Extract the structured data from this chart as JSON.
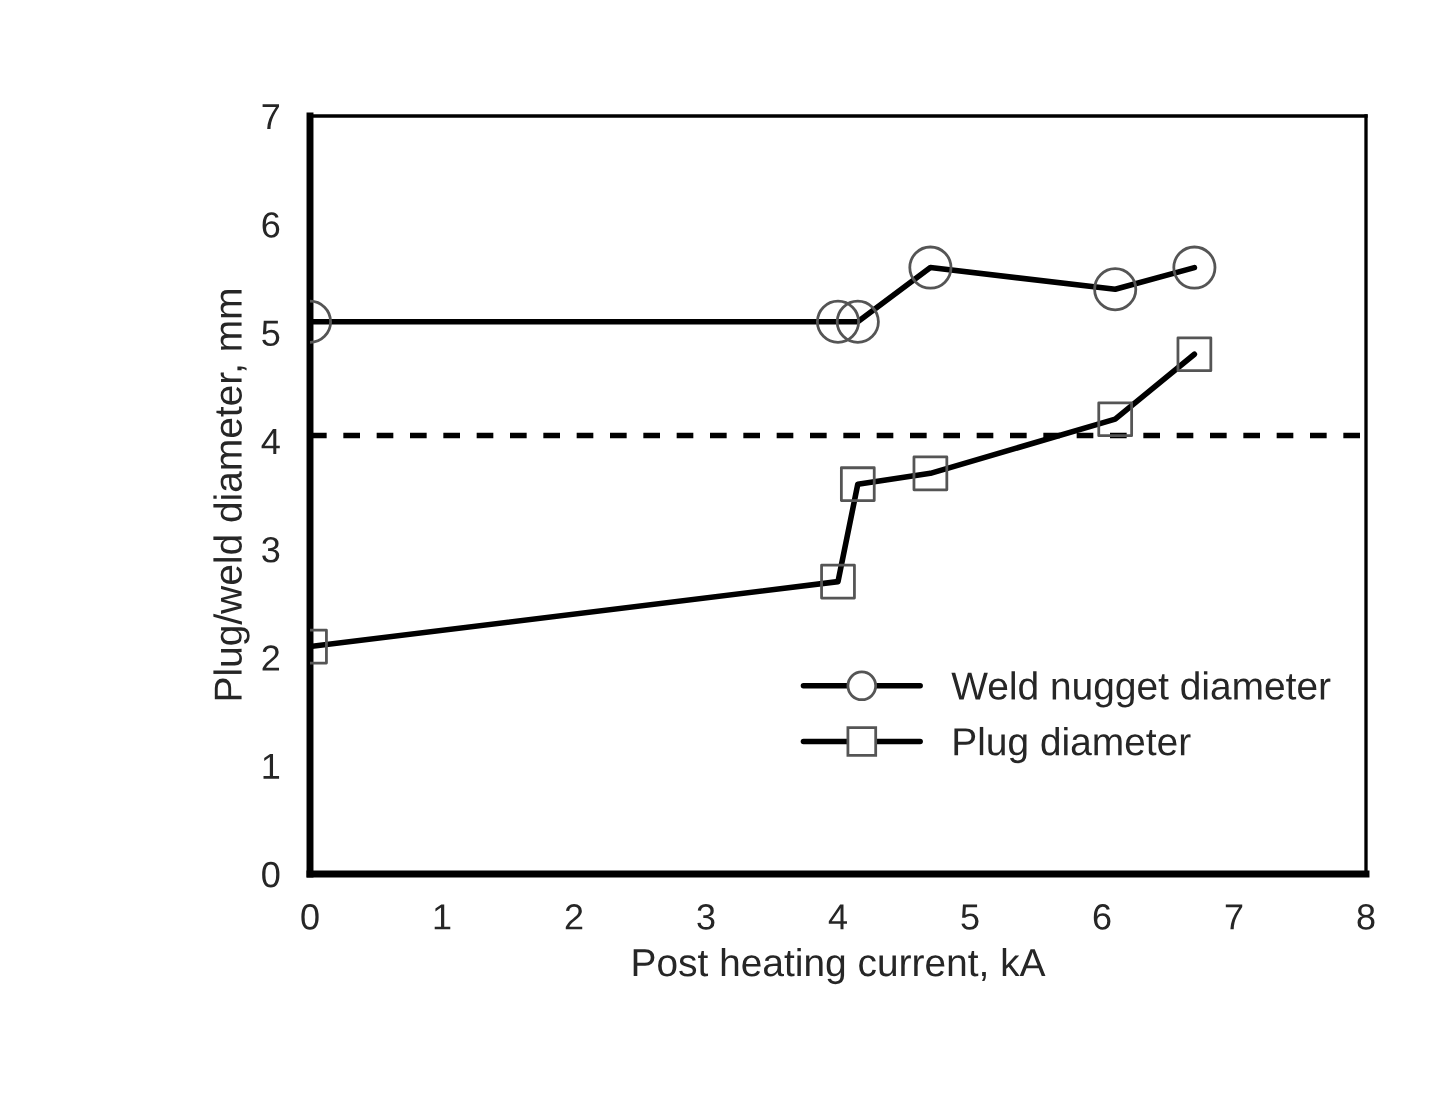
{
  "chart_data": {
    "type": "line",
    "xlabel": "Post heating current, kA",
    "ylabel": "Plug/weld diameter, mm",
    "series": [
      {
        "name": "Weld nugget diameter",
        "color": "#000000",
        "marker": "circle",
        "x": [
          0,
          4.0,
          4.15,
          4.7,
          6.1,
          6.7
        ],
        "values": [
          5.1,
          5.1,
          5.1,
          5.6,
          5.4,
          5.6
        ]
      },
      {
        "name": "Plug diameter",
        "color": "#000000",
        "marker": "square",
        "x": [
          0,
          4.0,
          4.15,
          4.7,
          6.1,
          6.7
        ],
        "values": [
          2.1,
          2.7,
          3.6,
          3.7,
          4.2,
          4.8
        ]
      }
    ],
    "xlim": [
      0,
      8
    ],
    "xticks": [
      0,
      1,
      2,
      3,
      4,
      5,
      6,
      7,
      8
    ],
    "ylim": [
      0,
      7
    ],
    "yticks": [
      0,
      1,
      2,
      3,
      4,
      5,
      6,
      7
    ],
    "ref_lines": [
      {
        "axis": "y",
        "value": 4.05,
        "label": null,
        "color": "#000000",
        "line_style": "dashed"
      }
    ],
    "grid": false,
    "legend": "bottom right",
    "line_style": "solid"
  }
}
